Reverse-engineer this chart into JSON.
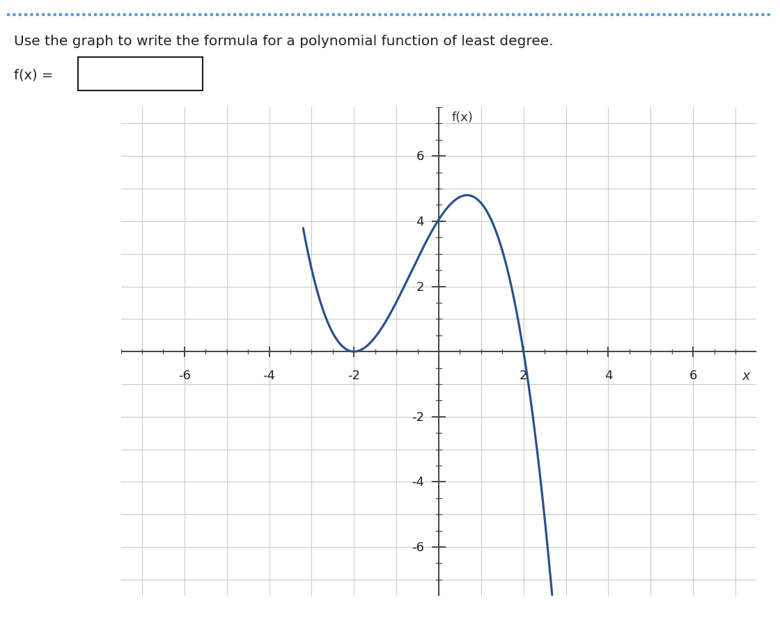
{
  "title_text": "Use the graph to write the formula for a polynomial function of least degree.",
  "fx_label": "f(x) =",
  "graph_ylabel": "f(x)",
  "graph_xlabel": "x",
  "xlim": [
    -7.5,
    7.5
  ],
  "ylim": [
    -7.5,
    7.5
  ],
  "xticks": [
    -6,
    -4,
    -2,
    2,
    4,
    6
  ],
  "yticks": [
    -6,
    -4,
    -2,
    2,
    4,
    6
  ],
  "curve_color": "#2b4f8a",
  "curve_linewidth": 2.3,
  "grid_color": "#c8c8c8",
  "background_color": "#ffffff",
  "axes_color": "#333333",
  "title_color": "#222222",
  "dotted_border_color": "#5b9bd5",
  "poly_a": -2,
  "poly_b": -2,
  "poly_c": 2,
  "target_max_y": 4.8,
  "x_plot_min": -3.2,
  "x_plot_max": 3.1
}
